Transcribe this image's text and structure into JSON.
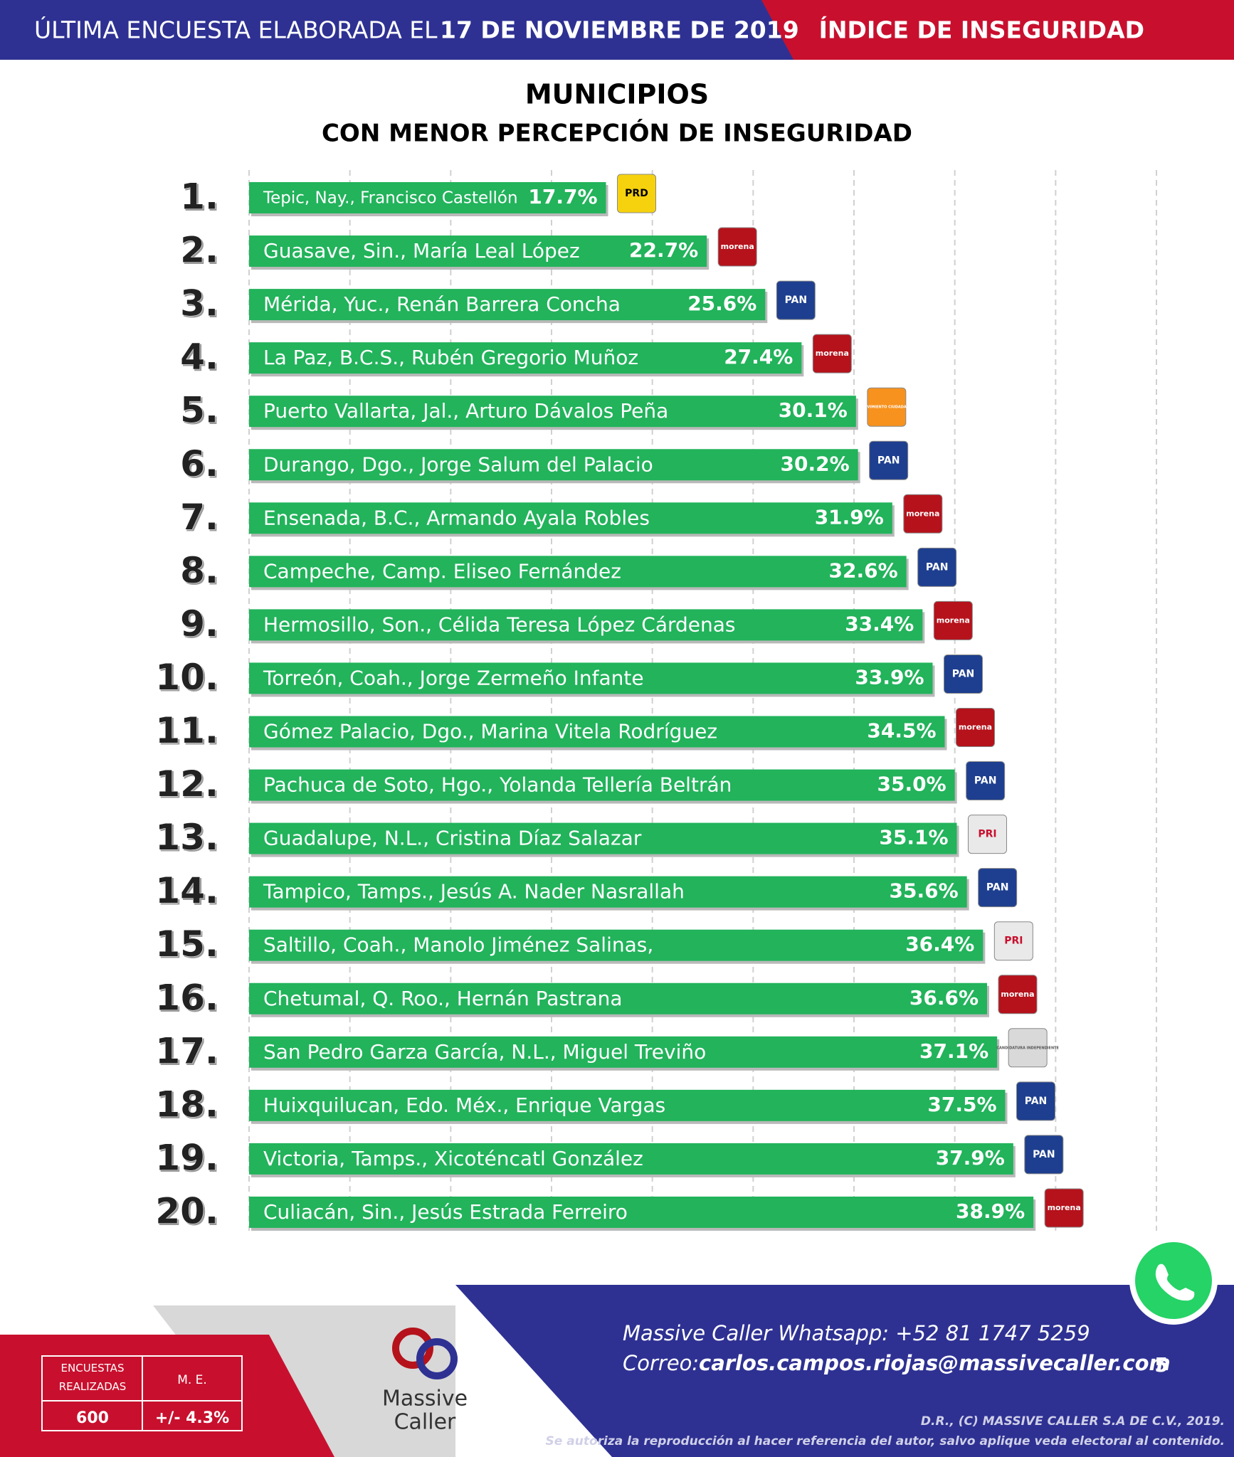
{
  "header": {
    "left": "ÚLTIMA ENCUESTA ELABORADA EL",
    "date": "17 DE NOVIEMBRE DE 2019",
    "right": "ÍNDICE DE INSEGURIDAD"
  },
  "chart_data": {
    "type": "bar",
    "orientation": "horizontal",
    "title": "MUNICIPIOS",
    "subtitle": "CON MENOR PERCEPCIÓN DE INSEGURIDAD",
    "ranks": [
      "1.",
      "2.",
      "3.",
      "4.",
      "5.",
      "6.",
      "7.",
      "8.",
      "9.",
      "10.",
      "11.",
      "12.",
      "13.",
      "14.",
      "15.",
      "16.",
      "17.",
      "18.",
      "19.",
      "20."
    ],
    "categories": [
      "Tepic, Nay., Francisco Castellón",
      "Guasave, Sin., María Leal López",
      "Mérida, Yuc., Renán Barrera Concha",
      "La Paz, B.C.S., Rubén Gregorio Muñoz",
      "Puerto Vallarta, Jal., Arturo Dávalos Peña",
      "Durango, Dgo., Jorge Salum del Palacio",
      "Ensenada, B.C., Armando Ayala Robles",
      "Campeche, Camp. Eliseo Fernández",
      "Hermosillo, Son., Célida Teresa López Cárdenas",
      "Torreón, Coah., Jorge Zermeño Infante",
      "Gómez Palacio, Dgo., Marina Vitela Rodríguez",
      "Pachuca de Soto, Hgo., Yolanda Tellería Beltrán",
      "Guadalupe, N.L., Cristina Díaz Salazar",
      "Tampico, Tamps., Jesús A. Nader Nasrallah",
      "Saltillo, Coah., Manolo Jiménez Salinas,",
      "Chetumal, Q. Roo., Hernán Pastrana",
      "San Pedro Garza García, N.L., Miguel Treviño",
      "Huixquilucan, Edo. Méx., Enrique Vargas",
      "Victoria, Tamps., Xicoténcatl González",
      "Culiacán, Sin., Jesús Estrada Ferreiro"
    ],
    "values": [
      17.7,
      22.7,
      25.6,
      27.4,
      30.1,
      30.2,
      31.9,
      32.6,
      33.4,
      33.9,
      34.5,
      35.0,
      35.1,
      35.6,
      36.4,
      36.6,
      37.1,
      37.5,
      37.9,
      38.9
    ],
    "value_labels": [
      "17.7%",
      "22.7%",
      "25.6%",
      "27.4%",
      "30.1%",
      "30.2%",
      "31.9%",
      "32.6%",
      "33.4%",
      "33.9%",
      "34.5%",
      "35.0%",
      "35.1%",
      "35.6%",
      "36.4%",
      "36.6%",
      "37.1%",
      "37.5%",
      "37.9%",
      "38.9%"
    ],
    "logos": [
      {
        "text": "PRD",
        "color": "#f6d20e",
        "text_color": "#000000"
      },
      {
        "text": "morena",
        "color": "#b5121b",
        "text_color": "#ffffff"
      },
      {
        "text": "PAN",
        "color": "#1e3f8f",
        "text_color": "#ffffff"
      },
      {
        "text": "morena",
        "color": "#b5121b",
        "text_color": "#ffffff"
      },
      {
        "text": "MOVIMIENTO CIUDADANO",
        "color": "#f7921e",
        "text_color": "#ffffff"
      },
      {
        "text": "PAN",
        "color": "#1e3f8f",
        "text_color": "#ffffff"
      },
      {
        "text": "morena",
        "color": "#b5121b",
        "text_color": "#ffffff"
      },
      {
        "text": "PAN",
        "color": "#1e3f8f",
        "text_color": "#ffffff"
      },
      {
        "text": "morena",
        "color": "#b5121b",
        "text_color": "#ffffff"
      },
      {
        "text": "PAN",
        "color": "#1e3f8f",
        "text_color": "#ffffff"
      },
      {
        "text": "morena",
        "color": "#b5121b",
        "text_color": "#ffffff"
      },
      {
        "text": "PAN",
        "color": "#1e3f8f",
        "text_color": "#ffffff"
      },
      {
        "text": "PRI",
        "color": "#e9e9e9",
        "text_color": "#c8102e"
      },
      {
        "text": "PAN",
        "color": "#1e3f8f",
        "text_color": "#ffffff"
      },
      {
        "text": "PRI",
        "color": "#e9e9e9",
        "text_color": "#c8102e"
      },
      {
        "text": "morena",
        "color": "#b5121b",
        "text_color": "#ffffff"
      },
      {
        "text": "CANDIDATURA INDEPENDIENTE",
        "color": "#d9d9d9",
        "text_color": "#555555"
      },
      {
        "text": "PAN",
        "color": "#1e3f8f",
        "text_color": "#ffffff"
      },
      {
        "text": "PAN",
        "color": "#1e3f8f",
        "text_color": "#ffffff"
      },
      {
        "text": "morena",
        "color": "#b5121b",
        "text_color": "#ffffff"
      }
    ],
    "color": "#22b35b",
    "xlim": [
      0,
      45
    ],
    "xticks": [
      0,
      5,
      10,
      15,
      20,
      25,
      30,
      35,
      40,
      45
    ],
    "grid": true
  },
  "footer": {
    "table_head_1": "ENCUESTAS REALIZADAS",
    "table_head_2": "M. E.",
    "table_val_1": "600",
    "table_val_2": "+/- 4.3%",
    "brand_1": "Massive",
    "brand_2": "Caller",
    "whatsapp": "Massive Caller Whatsapp: +52   81 1747 5259",
    "mail_label": "Correo:",
    "mail": "carlos.campos.riojas@massivecaller.com",
    "page": "5",
    "copyright": "D.R., (C) MASSIVE CALLER S.A DE C.V., 2019.",
    "notice": "Se autoriza la reproducción al hacer referencia del autor, salvo aplique veda electoral al contenido."
  }
}
